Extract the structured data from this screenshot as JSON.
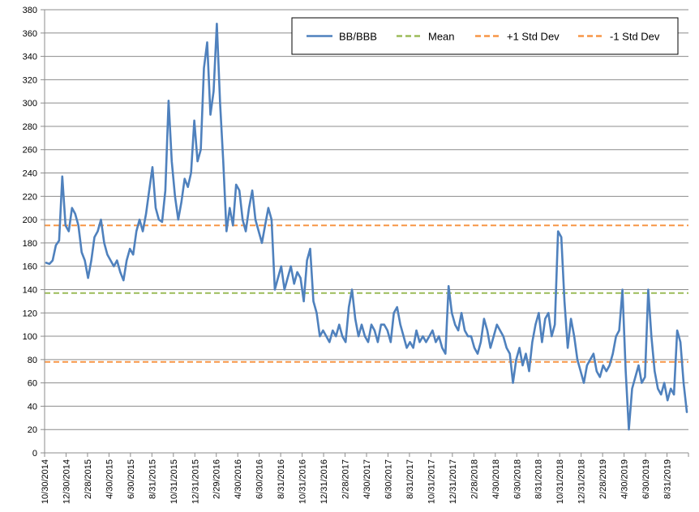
{
  "chart_data": {
    "type": "line",
    "title": "",
    "xlabel": "",
    "ylabel": "",
    "ylim": [
      0,
      380
    ],
    "y_ticks": [
      0,
      20,
      40,
      60,
      80,
      100,
      120,
      140,
      160,
      180,
      200,
      220,
      240,
      260,
      280,
      300,
      320,
      340,
      360,
      380
    ],
    "x_tick_labels": [
      "10/30/2014",
      "12/30/2014",
      "2/28/2015",
      "4/30/2015",
      "6/30/2015",
      "8/31/2015",
      "10/31/2015",
      "12/31/2015",
      "2/29/2016",
      "4/30/2016",
      "6/30/2016",
      "8/31/2016",
      "10/31/2016",
      "12/31/2016",
      "2/28/2017",
      "4/30/2017",
      "6/30/2017",
      "8/31/2017",
      "10/31/2017",
      "12/31/2017",
      "2/28/2018",
      "4/30/2018",
      "6/30/2018",
      "8/31/2018",
      "10/31/2018",
      "12/31/2018",
      "2/28/2019",
      "4/30/2019",
      "6/30/2019",
      "8/31/2019",
      ""
    ],
    "grid": "horizontal",
    "legend_position": "top-right",
    "colors": {
      "series": "#4f81bd",
      "mean": "#9bbb59",
      "std": "#f79646"
    },
    "series": [
      {
        "name": "BB/BBB",
        "style": "solid",
        "values": [
          163,
          162,
          165,
          178,
          182,
          237,
          195,
          190,
          210,
          205,
          195,
          172,
          165,
          150,
          165,
          185,
          190,
          200,
          180,
          170,
          165,
          160,
          165,
          155,
          148,
          165,
          175,
          170,
          190,
          200,
          190,
          205,
          225,
          245,
          210,
          200,
          198,
          225,
          302,
          250,
          220,
          200,
          215,
          235,
          228,
          240,
          285,
          250,
          260,
          330,
          352,
          290,
          310,
          368,
          300,
          250,
          190,
          210,
          195,
          230,
          225,
          200,
          190,
          210,
          225,
          200,
          190,
          180,
          195,
          210,
          200,
          140,
          150,
          160,
          140,
          150,
          160,
          145,
          155,
          150,
          130,
          165,
          175,
          130,
          120,
          100,
          105,
          100,
          95,
          105,
          100,
          110,
          100,
          95,
          125,
          140,
          115,
          100,
          110,
          100,
          95,
          110,
          105,
          95,
          110,
          110,
          105,
          95,
          120,
          125,
          110,
          100,
          90,
          95,
          90,
          105,
          95,
          100,
          95,
          100,
          105,
          95,
          100,
          90,
          85,
          143,
          120,
          110,
          105,
          120,
          105,
          100,
          100,
          90,
          85,
          95,
          115,
          105,
          90,
          100,
          110,
          105,
          100,
          90,
          85,
          60,
          80,
          90,
          75,
          85,
          70,
          95,
          110,
          120,
          95,
          115,
          120,
          100,
          110,
          190,
          185,
          130,
          90,
          115,
          100,
          80,
          70,
          60,
          75,
          80,
          85,
          70,
          65,
          75,
          70,
          75,
          85,
          100,
          105,
          140,
          70,
          20,
          55,
          65,
          75,
          60,
          65,
          140,
          100,
          70,
          55,
          50,
          60,
          45,
          55,
          50,
          105,
          95,
          60,
          35
        ]
      },
      {
        "name": "Mean",
        "style": "dashed",
        "values": [
          137
        ]
      },
      {
        "name": "+1 Std Dev",
        "style": "dashed",
        "values": [
          195
        ]
      },
      {
        "name": "-1 Std Dev",
        "style": "dashed",
        "values": [
          78
        ]
      }
    ]
  }
}
